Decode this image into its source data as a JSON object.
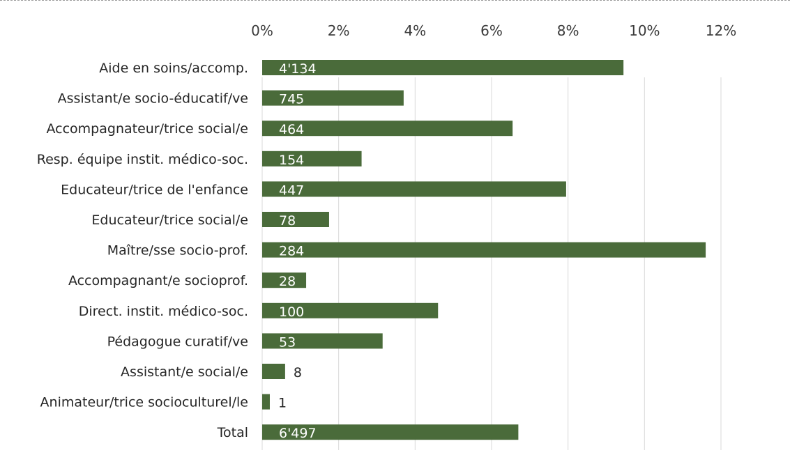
{
  "chart_data": {
    "type": "bar",
    "orientation": "horizontal",
    "title": "",
    "xlabel": "",
    "ylabel": "",
    "xlim": [
      0,
      12
    ],
    "x_ticks": [
      "0%",
      "2%",
      "4%",
      "6%",
      "8%",
      "10%",
      "12%"
    ],
    "x_axis_position": "top",
    "grid": true,
    "legend": "none",
    "bar_color": "#4a6b3a",
    "categories": [
      "Aide en soins/accomp.",
      "Assistant/e socio-éducatif/ve",
      "Accompagnateur/trice social/e",
      "Resp. équipe instit. médico-soc.",
      "Educateur/trice de l'enfance",
      "Educateur/trice social/e",
      "Maître/sse socio-prof.",
      "Accompagnant/e socioprof.",
      "Direct. instit. médico-soc.",
      "Pédagogue curatif/ve",
      "Assistant/e social/e",
      "Animateur/trice socioculturel/le",
      "Total"
    ],
    "values": [
      9.45,
      3.7,
      6.55,
      2.6,
      7.95,
      1.75,
      11.6,
      1.15,
      4.6,
      3.15,
      0.6,
      0.2,
      6.7
    ],
    "data_labels": [
      "4'134",
      "745",
      "464",
      "154",
      "447",
      "78",
      "284",
      "28",
      "100",
      "53",
      "8",
      "1",
      "6'497"
    ]
  }
}
